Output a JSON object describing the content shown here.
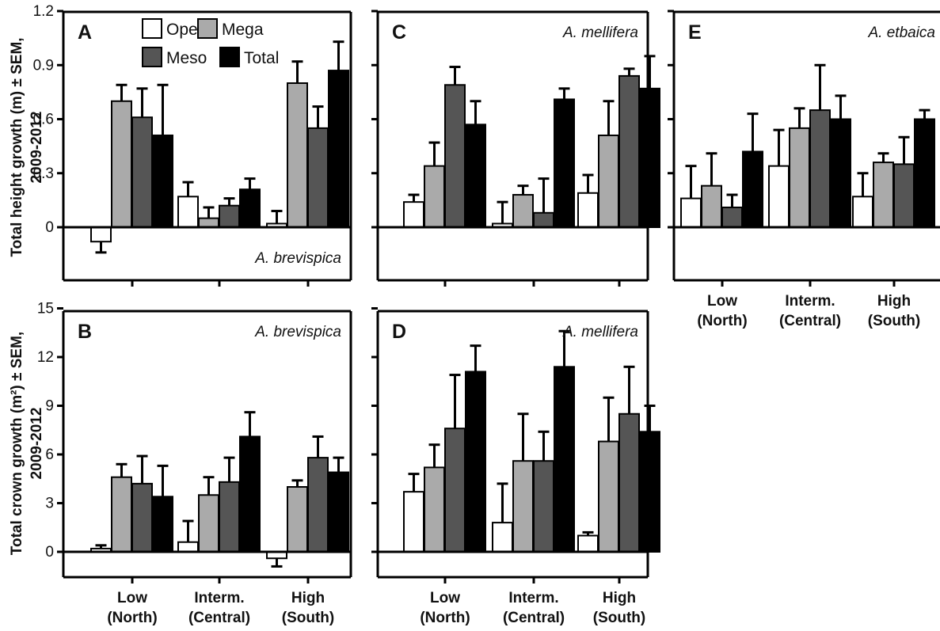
{
  "colors": {
    "Open": "#ffffff",
    "Mega": "#aaaaaa",
    "Meso": "#555555",
    "Total": "#000000"
  },
  "ylabels": {
    "height": [
      "Total height growth (m) ± SEM,",
      "2009-2012"
    ],
    "crown": [
      "Total crown growth (m²) ± SEM,",
      "2009-2012"
    ]
  },
  "chart_data": [
    {
      "panel": "A",
      "type": "bar",
      "species": "A. brevispica",
      "categories": [
        "Low (North)",
        "Interm. (Central)",
        "High (South)"
      ],
      "series": [
        {
          "name": "Open",
          "values": [
            -0.08,
            0.17,
            0.02
          ],
          "sem": [
            0.06,
            0.08,
            0.07
          ]
        },
        {
          "name": "Mega",
          "values": [
            0.7,
            0.05,
            0.8
          ],
          "sem": [
            0.09,
            0.06,
            0.12
          ]
        },
        {
          "name": "Meso",
          "values": [
            0.61,
            0.12,
            0.55
          ],
          "sem": [
            0.16,
            0.04,
            0.12
          ]
        },
        {
          "name": "Total",
          "values": [
            0.51,
            0.21,
            0.87
          ],
          "sem": [
            0.28,
            0.06,
            0.16
          ]
        }
      ],
      "ylim": [
        -0.3,
        1.2
      ],
      "yticks": [
        "0",
        "0.3",
        "0.6",
        "0.9",
        "1.2"
      ],
      "legend": [
        "Open",
        "Mega",
        "Meso",
        "Total"
      ]
    },
    {
      "panel": "B",
      "type": "bar",
      "species": "A. brevispica",
      "categories": [
        "Low (North)",
        "Interm. (Central)",
        "High (South)"
      ],
      "series": [
        {
          "name": "Open",
          "values": [
            0.2,
            0.6,
            -0.4
          ],
          "sem": [
            0.2,
            1.3,
            0.5
          ]
        },
        {
          "name": "Mega",
          "values": [
            4.6,
            3.5,
            4.0
          ],
          "sem": [
            0.8,
            1.1,
            0.4
          ]
        },
        {
          "name": "Meso",
          "values": [
            4.2,
            4.3,
            5.8
          ],
          "sem": [
            1.7,
            1.5,
            1.3
          ]
        },
        {
          "name": "Total",
          "values": [
            3.4,
            7.1,
            4.9
          ],
          "sem": [
            1.9,
            1.5,
            0.9
          ]
        }
      ],
      "ylim": [
        -1.6,
        15
      ],
      "yticks": [
        "0",
        "3",
        "6",
        "9",
        "12",
        "15"
      ],
      "xlabels": [
        [
          "Low",
          "(North)"
        ],
        [
          "Interm.",
          "(Central)"
        ],
        [
          "High",
          "(South)"
        ]
      ]
    },
    {
      "panel": "C",
      "type": "bar",
      "species": "A. mellifera",
      "categories": [
        "Low (North)",
        "Interm. (Central)",
        "High (South)"
      ],
      "series": [
        {
          "name": "Open",
          "values": [
            0.14,
            0.02,
            0.19
          ],
          "sem": [
            0.04,
            0.12,
            0.1
          ]
        },
        {
          "name": "Mega",
          "values": [
            0.34,
            0.18,
            0.51
          ],
          "sem": [
            0.13,
            0.05,
            0.19
          ]
        },
        {
          "name": "Meso",
          "values": [
            0.79,
            0.08,
            0.84
          ],
          "sem": [
            0.1,
            0.19,
            0.04
          ]
        },
        {
          "name": "Total",
          "values": [
            0.57,
            0.71,
            0.77
          ],
          "sem": [
            0.13,
            0.06,
            0.18
          ]
        }
      ],
      "ylim": [
        -0.3,
        1.2
      ]
    },
    {
      "panel": "D",
      "type": "bar",
      "species": "A. mellifera",
      "categories": [
        "Low (North)",
        "Interm. (Central)",
        "High (South)"
      ],
      "series": [
        {
          "name": "Open",
          "values": [
            3.7,
            1.8,
            1.0
          ],
          "sem": [
            1.1,
            2.4,
            0.2
          ]
        },
        {
          "name": "Mega",
          "values": [
            5.2,
            5.6,
            6.8
          ],
          "sem": [
            1.4,
            2.9,
            2.7
          ]
        },
        {
          "name": "Meso",
          "values": [
            7.6,
            5.6,
            8.5
          ],
          "sem": [
            3.3,
            1.8,
            2.9
          ]
        },
        {
          "name": "Total",
          "values": [
            11.1,
            11.4,
            7.4
          ],
          "sem": [
            1.6,
            2.2,
            1.6
          ]
        }
      ],
      "ylim": [
        -1.6,
        15
      ],
      "xlabels": [
        [
          "Low",
          "(North)"
        ],
        [
          "Interm.",
          "(Central)"
        ],
        [
          "High",
          "(South)"
        ]
      ]
    },
    {
      "panel": "E",
      "type": "bar",
      "species": "A. etbaica",
      "categories": [
        "Low (North)",
        "Interm. (Central)",
        "High (South)"
      ],
      "series": [
        {
          "name": "Open",
          "values": [
            0.16,
            0.34,
            0.17
          ],
          "sem": [
            0.18,
            0.2,
            0.13
          ]
        },
        {
          "name": "Mega",
          "values": [
            0.23,
            0.55,
            0.36
          ],
          "sem": [
            0.18,
            0.11,
            0.05
          ]
        },
        {
          "name": "Meso",
          "values": [
            0.11,
            0.65,
            0.35
          ],
          "sem": [
            0.07,
            0.25,
            0.15
          ]
        },
        {
          "name": "Total",
          "values": [
            0.42,
            0.6,
            0.6
          ],
          "sem": [
            0.21,
            0.13,
            0.05
          ]
        }
      ],
      "ylim": [
        -0.3,
        1.2
      ],
      "xlabels": [
        [
          "Low",
          "(North)"
        ],
        [
          "Interm.",
          "(Central)"
        ],
        [
          "High",
          "(South)"
        ]
      ]
    }
  ]
}
